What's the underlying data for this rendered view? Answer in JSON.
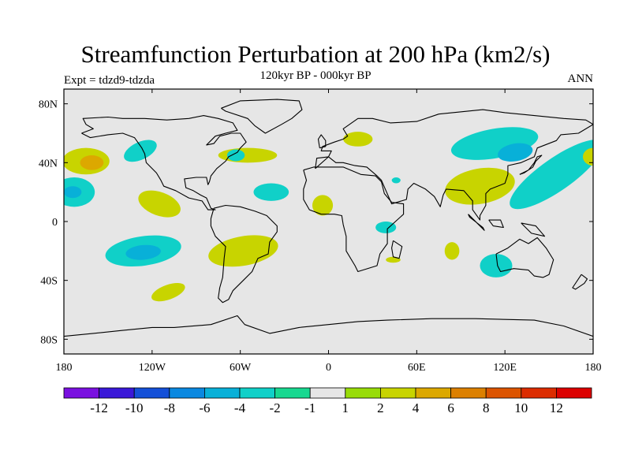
{
  "title": "Streamfunction Perturbation at 200 hPa (km2/s)",
  "subtitle": "120kyr BP - 000kyr BP",
  "left_string": "Expt = tdzd9-tdzda",
  "right_string": "ANN",
  "colors": {
    "ocean_land_background": "#e6e6e6",
    "coastline": "#000000",
    "shades": [
      "#7a10e0",
      "#3a18d8",
      "#1450d8",
      "#0a88e0",
      "#08b0d8",
      "#10d0c8",
      "#18d890",
      "#e6e6e6",
      "#98dc08",
      "#c8d400",
      "#dca800",
      "#dc8000",
      "#dc5400",
      "#dc2c00",
      "#dc0000"
    ]
  },
  "chart_data": {
    "type": "filled-contour-map",
    "projection": "cylindrical-equidistant",
    "title": "Streamfunction Perturbation at 200 hPa (km2/s)",
    "subtitle": "120kyr BP - 000kyr BP",
    "experiment": "Expt = tdzd9-tdzda",
    "season": "ANN",
    "lon_range": [
      0,
      360
    ],
    "lat_range": [
      -90,
      90
    ],
    "x_ticks": [
      {
        "lon": 0,
        "label": "180"
      },
      {
        "lon": 60,
        "label": "120W"
      },
      {
        "lon": 120,
        "label": "60W"
      },
      {
        "lon": 180,
        "label": "0"
      },
      {
        "lon": 240,
        "label": "60E"
      },
      {
        "lon": 300,
        "label": "120E"
      },
      {
        "lon": 360,
        "label": "180"
      }
    ],
    "y_ticks": [
      {
        "lat": 80,
        "label": "80N"
      },
      {
        "lat": 40,
        "label": "40N"
      },
      {
        "lat": 0,
        "label": "0"
      },
      {
        "lat": -40,
        "label": "40S"
      },
      {
        "lat": -80,
        "label": "80S"
      }
    ],
    "contour_levels": [
      "-12",
      "-10",
      "-8",
      "-6",
      "-4",
      "-2",
      "-1",
      "1",
      "2",
      "4",
      "6",
      "8",
      "10",
      "12"
    ],
    "anomaly_regions": [
      {
        "name": "N Pacific east",
        "center": [
          15,
          41
        ],
        "radius": [
          16,
          9
        ],
        "rot": 0,
        "level": 2
      },
      {
        "name": "N Pacific east core",
        "center": [
          19,
          40
        ],
        "radius": [
          8,
          5
        ],
        "rot": 0,
        "level": 4
      },
      {
        "name": "Gulf of Alaska",
        "center": [
          52,
          48
        ],
        "radius": [
          12,
          6
        ],
        "rot": -25,
        "level": -2
      },
      {
        "name": "E Pacific tropical",
        "center": [
          7,
          20
        ],
        "radius": [
          14,
          10
        ],
        "rot": 0,
        "level": -2
      },
      {
        "name": "E Pacific tropical core",
        "center": [
          6,
          20
        ],
        "radius": [
          6,
          4
        ],
        "rot": 0,
        "level": -4
      },
      {
        "name": "Central America west",
        "center": [
          65,
          12
        ],
        "radius": [
          15,
          8
        ],
        "rot": 20,
        "level": 2
      },
      {
        "name": "North America east",
        "center": [
          125,
          45
        ],
        "radius": [
          20,
          5
        ],
        "rot": 0,
        "level": 2
      },
      {
        "name": "Newfoundland",
        "center": [
          117,
          45
        ],
        "radius": [
          6,
          4
        ],
        "rot": 0,
        "level": -2
      },
      {
        "name": "Tropical Atlantic",
        "center": [
          141,
          20
        ],
        "radius": [
          12,
          6
        ],
        "rot": 0,
        "level": -2
      },
      {
        "name": "Sahara north",
        "center": [
          200,
          56
        ],
        "radius": [
          10,
          5
        ],
        "rot": 0,
        "level": 2
      },
      {
        "name": "West Africa",
        "center": [
          176,
          11
        ],
        "radius": [
          7,
          7
        ],
        "rot": 0,
        "level": 2
      },
      {
        "name": "Arabian",
        "center": [
          226,
          28
        ],
        "radius": [
          3,
          2
        ],
        "rot": 0,
        "level": -2
      },
      {
        "name": "East Africa",
        "center": [
          219,
          -4
        ],
        "radius": [
          7,
          4
        ],
        "rot": 0,
        "level": -2
      },
      {
        "name": "Madagascar east",
        "center": [
          224,
          -26
        ],
        "radius": [
          5,
          2
        ],
        "rot": 0,
        "level": 2
      },
      {
        "name": "Indian Ocean south",
        "center": [
          264,
          -20
        ],
        "radius": [
          5,
          6
        ],
        "rot": 0,
        "level": 2
      },
      {
        "name": "S Pacific east",
        "center": [
          54,
          -20
        ],
        "radius": [
          26,
          10
        ],
        "rot": -8,
        "level": -2
      },
      {
        "name": "S Pacific east core",
        "center": [
          54,
          -21
        ],
        "radius": [
          12,
          5
        ],
        "rot": -5,
        "level": -4
      },
      {
        "name": "S America east",
        "center": [
          122,
          -20
        ],
        "radius": [
          24,
          10
        ],
        "rot": -10,
        "level": 2
      },
      {
        "name": "S Pacific south",
        "center": [
          71,
          -48
        ],
        "radius": [
          12,
          5
        ],
        "rot": -20,
        "level": 2
      },
      {
        "name": "South Asia",
        "center": [
          283,
          24
        ],
        "radius": [
          24,
          12
        ],
        "rot": -10,
        "level": 2
      },
      {
        "name": "East Asia",
        "center": [
          293,
          53
        ],
        "radius": [
          30,
          10
        ],
        "rot": -10,
        "level": -2
      },
      {
        "name": "West Pacific band",
        "center": [
          335,
          32
        ],
        "radius": [
          38,
          11
        ],
        "rot": -35,
        "level": -2
      },
      {
        "name": "East Asia core",
        "center": [
          307,
          47
        ],
        "radius": [
          12,
          6
        ],
        "rot": -10,
        "level": -4
      },
      {
        "name": "Australia west",
        "center": [
          294,
          -30
        ],
        "radius": [
          11,
          8
        ],
        "rot": 0,
        "level": -2
      },
      {
        "name": "Dateline east",
        "center": [
          360,
          44
        ],
        "radius": [
          7,
          6
        ],
        "rot": 0,
        "level": 2
      }
    ]
  }
}
